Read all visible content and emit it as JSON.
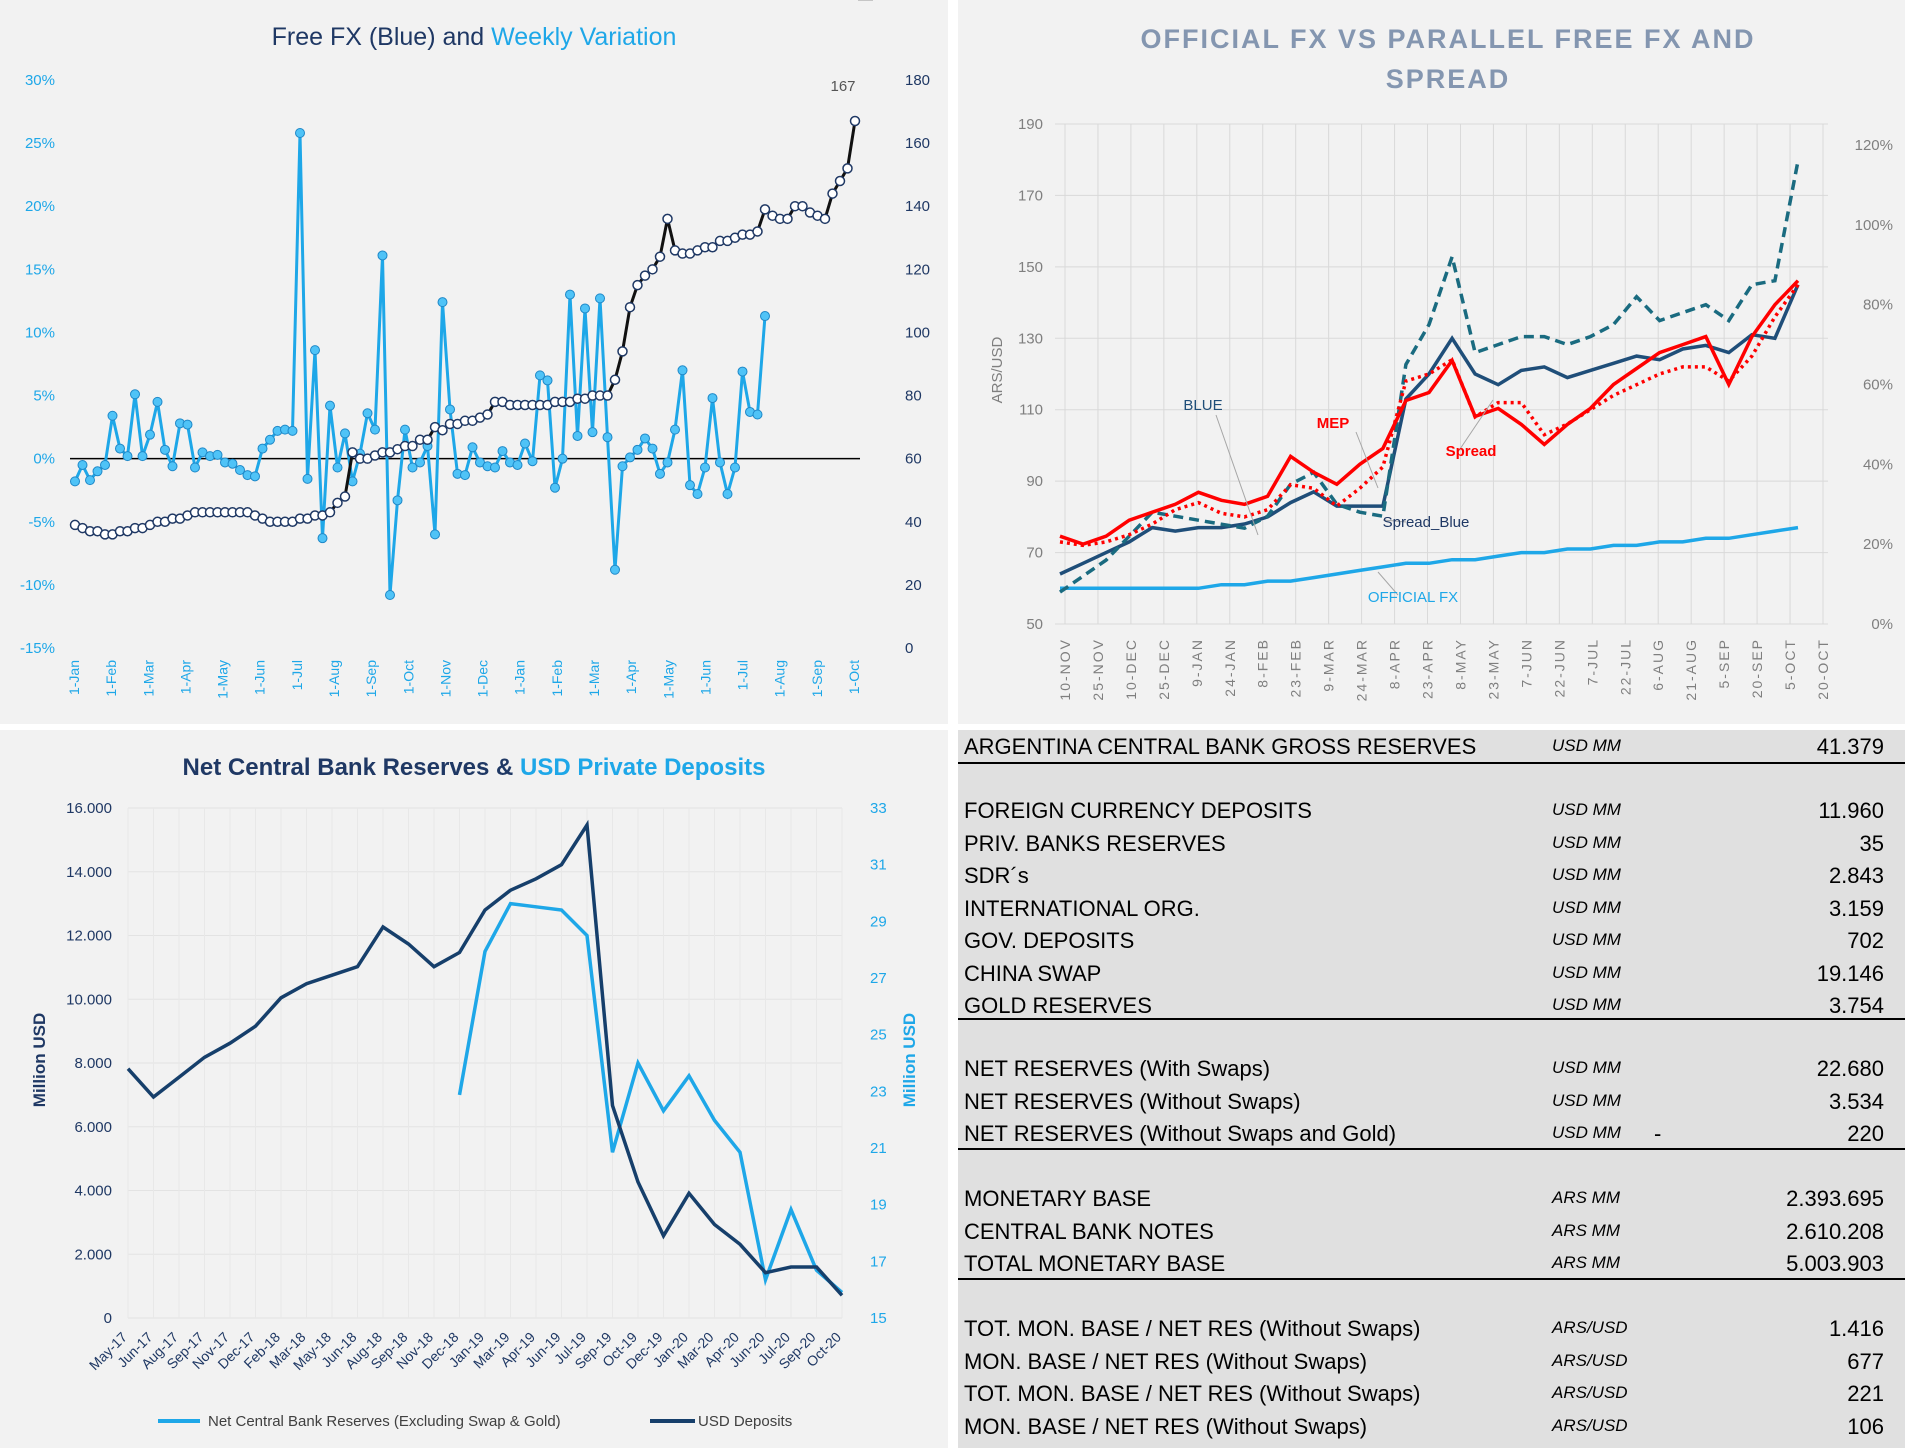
{
  "chart_data": [
    {
      "type": "line",
      "title_parts": [
        "Free FX (Blue) and ",
        "Weekly Variation"
      ],
      "title_colors": [
        "#1f3864",
        "#1ea7e8"
      ],
      "x_tick_labels": [
        "1-Jan",
        "1-Feb",
        "1-Mar",
        "1-Apr",
        "1-May",
        "1-Jun",
        "1-Jul",
        "1-Aug",
        "1-Sep",
        "1-Oct",
        "1-Nov",
        "1-Dec",
        "1-Jan",
        "1-Feb",
        "1-Mar",
        "1-Apr",
        "1-May",
        "1-Jun",
        "1-Jul",
        "1-Aug",
        "1-Sep",
        "1-Oct"
      ],
      "y_left_ticks": [
        "30%",
        "25%",
        "20%",
        "15%",
        "10%",
        "5%",
        "0%",
        "-5%",
        "-10%",
        "-15%"
      ],
      "y_right_ticks": [
        "180",
        "160",
        "140",
        "120",
        "100",
        "80",
        "60",
        "40",
        "20",
        "0"
      ],
      "ylim_left": [
        -15,
        30
      ],
      "ylim_right": [
        0,
        180
      ],
      "grid": false,
      "series": [
        {
          "name": "Free FX (Blue)",
          "axis": "right",
          "color": "#111111",
          "values": [
            39,
            38,
            37,
            37,
            36,
            36,
            37,
            37,
            38,
            38,
            39,
            40,
            40,
            41,
            41,
            42,
            43,
            43,
            43,
            43,
            43,
            43,
            43,
            43,
            42,
            41,
            40,
            40,
            40,
            40,
            41,
            41,
            42,
            42,
            43,
            46,
            48,
            62,
            60,
            60,
            61,
            62,
            62,
            63,
            64,
            64,
            66,
            66,
            70,
            69,
            71,
            71,
            72,
            72,
            73,
            74,
            78,
            78,
            77,
            77,
            77,
            77,
            77,
            77,
            78,
            78,
            78,
            79,
            79,
            80,
            80,
            80,
            85,
            94,
            108,
            115,
            118,
            120,
            124,
            136,
            126,
            125,
            125,
            126,
            127,
            127,
            129,
            129,
            130,
            131,
            131,
            132,
            139,
            137,
            136,
            136,
            140,
            140,
            138,
            137,
            136,
            144,
            148,
            152,
            167
          ]
        },
        {
          "name": "Weekly Variation",
          "axis": "left",
          "color": "#1ea7e8",
          "values": [
            -1.8,
            -0.5,
            -1.7,
            -1.0,
            -0.5,
            3.4,
            0.8,
            0.2,
            5.1,
            0.2,
            1.9,
            4.5,
            0.7,
            -0.6,
            2.8,
            2.7,
            -0.7,
            0.5,
            0.2,
            0.3,
            -0.3,
            -0.4,
            -0.9,
            -1.3,
            -1.4,
            0.8,
            1.5,
            2.2,
            2.3,
            2.2,
            25.8,
            -1.6,
            8.6,
            -6.3,
            4.2,
            -0.7,
            2.0,
            -1.8,
            0.4,
            3.6,
            2.3,
            16.1,
            -10.8,
            -3.3,
            2.3,
            -0.7,
            -0.3,
            1.0,
            -6.0,
            12.4,
            3.9,
            -1.2,
            -1.3,
            0.9,
            -0.3,
            -0.6,
            -0.7,
            0.6,
            -0.3,
            -0.5,
            1.2,
            -0.2,
            6.6,
            6.2,
            -2.3,
            0.0,
            13.0,
            1.8,
            11.9,
            2.1,
            12.7,
            1.7,
            -8.8,
            -0.6,
            0.1,
            0.7,
            1.6,
            0.8,
            -1.2,
            -0.3,
            2.3,
            7.0,
            -2.1,
            -2.8,
            -0.7,
            4.8,
            -0.3,
            -2.8,
            -0.7,
            6.9,
            3.7,
            3.5,
            11.3
          ]
        }
      ],
      "annotations": [
        "167",
        "11%"
      ]
    },
    {
      "type": "line",
      "title": "OFFICIAL  FX VS PARALLEL  FREE FX AND SPREAD",
      "title_lines": [
        "OFFICIAL  FX VS PARALLEL  FREE FX AND",
        "SPREAD"
      ],
      "ylabel": "ARS/USD",
      "x_tick_labels": [
        "10-NOV",
        "25-NOV",
        "10-DEC",
        "25-DEC",
        "9-JAN",
        "24-JAN",
        "8-FEB",
        "23-FEB",
        "9-MAR",
        "24-MAR",
        "8-APR",
        "23-APR",
        "8-MAY",
        "23-MAY",
        "7-JUN",
        "22-JUN",
        "7-JUL",
        "22-JUL",
        "6-AUG",
        "21-AUG",
        "5-SEP",
        "20-SEP",
        "5-OCT",
        "20-OCT"
      ],
      "y_left_ticks": [
        "190",
        "170",
        "150",
        "130",
        "110",
        "90",
        "70",
        "50"
      ],
      "y_right_ticks": [
        "120%",
        "100%",
        "80%",
        "60%",
        "40%",
        "20%",
        "0%"
      ],
      "ylim_left": [
        50,
        190
      ],
      "ylim_right": [
        0,
        120
      ],
      "grid": true,
      "series": [
        {
          "name": "OFFICIAL FX",
          "axis": "left",
          "color": "#1ea7e8",
          "style": "solid",
          "values": [
            60,
            60,
            60,
            60,
            60,
            60,
            60,
            61,
            61,
            62,
            62,
            63,
            64,
            65,
            66,
            67,
            67,
            68,
            68,
            69,
            70,
            70,
            71,
            71,
            72,
            72,
            73,
            73,
            74,
            74,
            75,
            76,
            77
          ]
        },
        {
          "name": "BLUE",
          "axis": "left",
          "color": "#1f4e79",
          "style": "solid",
          "values": [
            64,
            67,
            70,
            73,
            77,
            76,
            77,
            77,
            78,
            80,
            84,
            87,
            83,
            83,
            83,
            113,
            120,
            130,
            120,
            117,
            121,
            122,
            119,
            121,
            123,
            125,
            124,
            127,
            128,
            126,
            131,
            130,
            145
          ]
        },
        {
          "name": "Spread_Blue",
          "axis": "right",
          "color": "#1a6b80",
          "style": "dashed",
          "values": [
            8,
            12,
            16,
            22,
            28,
            27,
            26,
            25,
            24,
            27,
            35,
            38,
            30,
            28,
            27,
            65,
            75,
            92,
            68,
            70,
            72,
            72,
            70,
            72,
            75,
            82,
            76,
            78,
            80,
            76,
            85,
            86,
            116
          ]
        },
        {
          "name": "MEP",
          "axis": "left",
          "color": "#ff0000",
          "style": "dotted",
          "values": [
            73,
            72,
            73,
            75,
            78,
            82,
            84,
            81,
            80,
            82,
            89,
            88,
            83,
            88,
            94,
            118,
            120,
            124,
            108,
            112,
            112,
            103,
            106,
            110,
            114,
            117,
            120,
            122,
            122,
            118,
            125,
            136,
            145
          ]
        },
        {
          "name": "Spread",
          "axis": "right",
          "color": "#ff0000",
          "style": "solid",
          "values": [
            22,
            20,
            22,
            26,
            28,
            30,
            33,
            31,
            30,
            32,
            42,
            38,
            35,
            40,
            44,
            56,
            58,
            66,
            52,
            54,
            50,
            45,
            50,
            54,
            60,
            64,
            68,
            70,
            72,
            60,
            72,
            80,
            86
          ]
        }
      ],
      "annotations": [
        "BLUE",
        "MEP",
        "Spread",
        "Spread_Blue",
        "OFFICIAL FX"
      ]
    },
    {
      "type": "line",
      "title_parts": [
        "Net Central Bank Reserves & ",
        "USD Private Deposits"
      ],
      "title_colors": [
        "#1f3864",
        "#1ea7e8"
      ],
      "ylabel": "Million USD",
      "ylabel_right": "Million USD",
      "x_tick_labels": [
        "May-17",
        "Jun-17",
        "Aug-17",
        "Sep-17",
        "Nov-17",
        "Dec-17",
        "Feb-18",
        "Mar-18",
        "May-18",
        "Jun-18",
        "Aug-18",
        "Sep-18",
        "Nov-18",
        "Dec-18",
        "Jan-19",
        "Mar-19",
        "Apr-19",
        "Jun-19",
        "Jul-19",
        "Sep-19",
        "Oct-19",
        "Dec-19",
        "Jan-20",
        "Mar-20",
        "Apr-20",
        "Jun-20",
        "Jul-20",
        "Sep-20",
        "Oct-20"
      ],
      "y_left_ticks": [
        "16.000",
        "14.000",
        "12.000",
        "10.000",
        "8.000",
        "6.000",
        "4.000",
        "2.000",
        "0"
      ],
      "y_right_ticks": [
        "33",
        "31",
        "29",
        "27",
        "25",
        "23",
        "21",
        "19",
        "17",
        "15"
      ],
      "ylim_left": [
        0,
        16000
      ],
      "ylim_right": [
        15,
        33
      ],
      "legend": {
        "position": "bottom",
        "items": [
          "Net Central Bank Reserves (Excluding Swap & Gold)",
          "USD Deposits"
        ]
      },
      "series": [
        {
          "name": "Net Central Bank Reserves (Excluding Swap & Gold)",
          "axis": "left",
          "color": "#1ea7e8",
          "values": [
            null,
            null,
            null,
            null,
            null,
            null,
            null,
            null,
            null,
            null,
            null,
            null,
            null,
            7000,
            11500,
            13000,
            12900,
            12800,
            12000,
            5200,
            8000,
            6500,
            7600,
            6200,
            5200,
            1200,
            3400,
            1500,
            800
          ]
        },
        {
          "name": "USD Deposits",
          "axis": "right",
          "color": "#163f6b",
          "values": [
            23.8,
            22.8,
            23.5,
            24.2,
            24.7,
            25.3,
            26.3,
            26.8,
            27.1,
            27.4,
            28.8,
            28.2,
            27.4,
            27.9,
            29.4,
            30.1,
            30.5,
            31.0,
            32.4,
            22.5,
            19.8,
            17.9,
            19.4,
            18.3,
            17.6,
            16.6,
            16.8,
            16.8,
            15.8
          ]
        }
      ]
    }
  ],
  "reserves_table": {
    "header": {
      "label": "ARGENTINA CENTRAL BANK GROSS RESERVES",
      "unit": "USD MM",
      "value": "41.379"
    },
    "group1": [
      {
        "label": "FOREIGN CURRENCY DEPOSITS",
        "unit": "USD MM",
        "value": "11.960"
      },
      {
        "label": "PRIV. BANKS RESERVES",
        "unit": "USD MM",
        "value": "35"
      },
      {
        "label": "SDR´s",
        "unit": "USD MM",
        "value": "2.843"
      },
      {
        "label": "INTERNATIONAL ORG.",
        "unit": "USD MM",
        "value": "3.159"
      },
      {
        "label": "GOV. DEPOSITS",
        "unit": "USD MM",
        "value": "702"
      },
      {
        "label": "CHINA SWAP",
        "unit": "USD MM",
        "value": "19.146"
      },
      {
        "label": "GOLD RESERVES",
        "unit": "USD MM",
        "value": "3.754"
      }
    ],
    "group2": [
      {
        "label": "NET RESERVES (With Swaps)",
        "unit": "USD MM",
        "value": "22.680",
        "dash": ""
      },
      {
        "label": "NET RESERVES (Without Swaps)",
        "unit": "USD MM",
        "value": "3.534",
        "dash": ""
      },
      {
        "label": "NET RESERVES (Without Swaps and Gold)",
        "unit": "USD MM",
        "value": "220",
        "dash": "-"
      }
    ],
    "group3": [
      {
        "label": "MONETARY BASE",
        "unit": "ARS MM",
        "value": "2.393.695"
      },
      {
        "label": "CENTRAL BANK NOTES",
        "unit": "ARS MM",
        "value": "2.610.208"
      },
      {
        "label": "TOTAL MONETARY BASE",
        "unit": "ARS MM",
        "value": "5.003.903"
      }
    ],
    "group4": [
      {
        "label": "TOT. MON. BASE / NET RES (Without Swaps)",
        "unit": "ARS/USD",
        "value": "1.416"
      },
      {
        "label": "MON. BASE / NET RES (Without Swaps)",
        "unit": "ARS/USD",
        "value": "677"
      },
      {
        "label": "TOT. MON. BASE / NET RES (Without Swaps)",
        "unit": "ARS/USD",
        "value": "221"
      },
      {
        "label": "MON. BASE / NET RES (Without Swaps)",
        "unit": "ARS/USD",
        "value": "106"
      }
    ]
  }
}
